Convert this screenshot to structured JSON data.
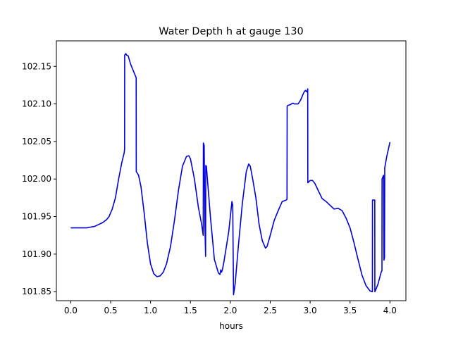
{
  "chart_data": {
    "type": "line",
    "title": "Water Depth h at gauge 130",
    "xlabel": "hours",
    "ylabel": "",
    "xlim": [
      -0.18,
      4.2
    ],
    "ylim": [
      101.838,
      102.184
    ],
    "xticks": [
      0.0,
      0.5,
      1.0,
      1.5,
      2.0,
      2.5,
      3.0,
      3.5,
      4.0
    ],
    "xtick_labels": [
      "0.0",
      "0.5",
      "1.0",
      "1.5",
      "2.0",
      "2.5",
      "3.0",
      "3.5",
      "4.0"
    ],
    "yticks": [
      101.85,
      101.9,
      101.95,
      102.0,
      102.05,
      102.1,
      102.15
    ],
    "ytick_labels": [
      "101.85",
      "101.90",
      "101.95",
      "102.00",
      "102.05",
      "102.10",
      "102.15"
    ],
    "grid": false,
    "series": [
      {
        "color": "#0000dd",
        "points": [
          [
            0.0,
            101.935
          ],
          [
            0.2,
            101.935
          ],
          [
            0.3,
            101.937
          ],
          [
            0.4,
            101.942
          ],
          [
            0.45,
            101.946
          ],
          [
            0.48,
            101.95
          ],
          [
            0.52,
            101.96
          ],
          [
            0.56,
            101.975
          ],
          [
            0.6,
            102.0
          ],
          [
            0.64,
            102.022
          ],
          [
            0.67,
            102.035
          ],
          [
            0.675,
            102.04
          ],
          [
            0.676,
            102.165
          ],
          [
            0.69,
            102.167
          ],
          [
            0.7,
            102.165
          ],
          [
            0.72,
            102.164
          ],
          [
            0.75,
            102.153
          ],
          [
            0.8,
            102.14
          ],
          [
            0.82,
            102.135
          ],
          [
            0.821,
            102.01
          ],
          [
            0.85,
            102.005
          ],
          [
            0.88,
            101.99
          ],
          [
            0.92,
            101.955
          ],
          [
            0.96,
            101.915
          ],
          [
            1.0,
            101.887
          ],
          [
            1.04,
            101.874
          ],
          [
            1.08,
            101.87
          ],
          [
            1.12,
            101.871
          ],
          [
            1.16,
            101.876
          ],
          [
            1.2,
            101.887
          ],
          [
            1.25,
            101.91
          ],
          [
            1.3,
            101.945
          ],
          [
            1.35,
            101.985
          ],
          [
            1.4,
            102.017
          ],
          [
            1.45,
            102.03
          ],
          [
            1.48,
            102.031
          ],
          [
            1.5,
            102.027
          ],
          [
            1.55,
            102.0
          ],
          [
            1.6,
            101.962
          ],
          [
            1.64,
            101.94
          ],
          [
            1.66,
            101.925
          ],
          [
            1.662,
            102.048
          ],
          [
            1.672,
            102.045
          ],
          [
            1.68,
            101.945
          ],
          [
            1.69,
            101.897
          ],
          [
            1.692,
            102.018
          ],
          [
            1.7,
            102.017
          ],
          [
            1.75,
            101.95
          ],
          [
            1.8,
            101.893
          ],
          [
            1.85,
            101.875
          ],
          [
            1.87,
            101.873
          ],
          [
            1.88,
            101.879
          ],
          [
            1.89,
            101.876
          ],
          [
            1.9,
            101.879
          ],
          [
            1.92,
            101.89
          ],
          [
            1.95,
            101.91
          ],
          [
            1.98,
            101.93
          ],
          [
            2.0,
            101.95
          ],
          [
            2.02,
            101.97
          ],
          [
            2.03,
            101.965
          ],
          [
            2.04,
            101.846
          ],
          [
            2.06,
            101.86
          ],
          [
            2.1,
            101.91
          ],
          [
            2.15,
            101.967
          ],
          [
            2.2,
            102.01
          ],
          [
            2.23,
            102.02
          ],
          [
            2.25,
            102.017
          ],
          [
            2.28,
            102.0
          ],
          [
            2.32,
            101.975
          ],
          [
            2.36,
            101.94
          ],
          [
            2.4,
            101.918
          ],
          [
            2.44,
            101.908
          ],
          [
            2.46,
            101.91
          ],
          [
            2.5,
            101.925
          ],
          [
            2.55,
            101.945
          ],
          [
            2.6,
            101.958
          ],
          [
            2.65,
            101.97
          ],
          [
            2.7,
            101.972
          ],
          [
            2.71,
            101.973
          ],
          [
            2.712,
            102.097
          ],
          [
            2.72,
            102.098
          ],
          [
            2.75,
            102.099
          ],
          [
            2.78,
            102.101
          ],
          [
            2.8,
            102.1
          ],
          [
            2.85,
            102.1
          ],
          [
            2.88,
            102.105
          ],
          [
            2.92,
            102.115
          ],
          [
            2.94,
            102.118
          ],
          [
            2.96,
            102.116
          ],
          [
            2.97,
            102.12
          ],
          [
            2.971,
            101.995
          ],
          [
            3.0,
            101.998
          ],
          [
            3.03,
            101.998
          ],
          [
            3.06,
            101.994
          ],
          [
            3.1,
            101.985
          ],
          [
            3.15,
            101.974
          ],
          [
            3.2,
            101.97
          ],
          [
            3.25,
            101.965
          ],
          [
            3.3,
            101.96
          ],
          [
            3.35,
            101.961
          ],
          [
            3.4,
            101.958
          ],
          [
            3.45,
            101.948
          ],
          [
            3.5,
            101.935
          ],
          [
            3.55,
            101.915
          ],
          [
            3.6,
            101.893
          ],
          [
            3.65,
            101.872
          ],
          [
            3.7,
            101.858
          ],
          [
            3.75,
            101.851
          ],
          [
            3.78,
            101.85
          ],
          [
            3.781,
            101.972
          ],
          [
            3.81,
            101.972
          ],
          [
            3.811,
            101.85
          ],
          [
            3.82,
            101.852
          ],
          [
            3.85,
            101.86
          ],
          [
            3.88,
            101.872
          ],
          [
            3.89,
            101.876
          ],
          [
            3.9,
            101.878
          ],
          [
            3.901,
            102.0
          ],
          [
            3.92,
            102.005
          ],
          [
            3.925,
            101.892
          ],
          [
            3.932,
            101.895
          ],
          [
            3.935,
            102.015
          ],
          [
            3.96,
            102.03
          ],
          [
            4.0,
            102.049
          ]
        ]
      }
    ]
  }
}
